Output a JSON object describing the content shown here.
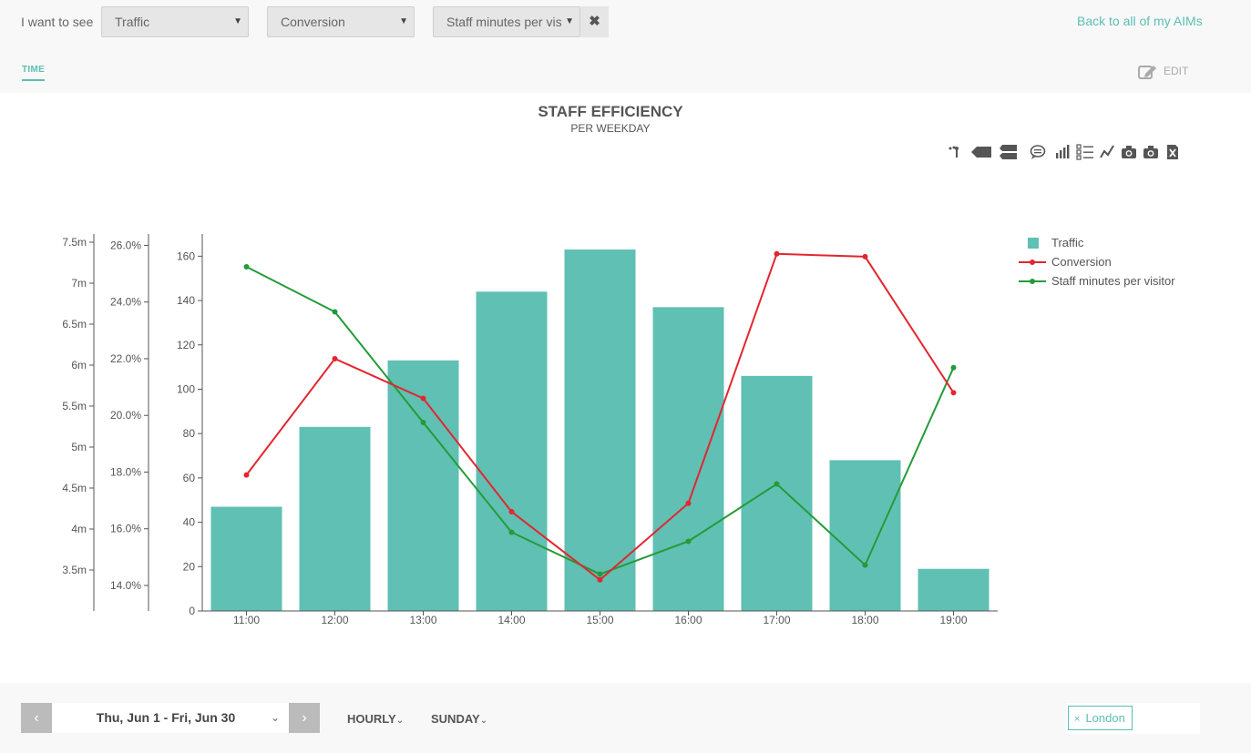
{
  "header": {
    "i_want_to_see": "I want to see",
    "selects": [
      "Traffic",
      "Conversion",
      "Staff minutes per vis"
    ],
    "back_link": "Back to all of my AIMs",
    "tab_time": "TIME",
    "edit_label": "EDIT"
  },
  "chart_meta": {
    "title": "STAFF EFFICIENCY",
    "subtitle": "PER WEEKDAY",
    "toolbar_icons": [
      "scatter-icon",
      "tag-icon",
      "double-tag-icon",
      "comment-icon",
      "bar-chart-icon",
      "list-icon",
      "line-chart-icon",
      "camera-icon",
      "camera-icon",
      "excel-icon"
    ]
  },
  "chart_data": {
    "type": "bar",
    "categories": [
      "11:00",
      "12:00",
      "13:00",
      "14:00",
      "15:00",
      "16:00",
      "17:00",
      "18:00",
      "19:00"
    ],
    "series": [
      {
        "name": "Traffic",
        "type": "bar",
        "axis": "left",
        "color": "#5fc0b3",
        "values": [
          47,
          83,
          113,
          144,
          163,
          137,
          106,
          68,
          19
        ]
      },
      {
        "name": "Conversion",
        "type": "line",
        "axis": "pct",
        "color": "#e3262f",
        "values": [
          17.9,
          22.0,
          20.6,
          16.6,
          14.2,
          16.9,
          25.7,
          25.6,
          20.8
        ]
      },
      {
        "name": "Staff minutes per visitor",
        "type": "line",
        "axis": "minutes",
        "color": "#249b38",
        "values": [
          7.2,
          6.65,
          5.3,
          3.96,
          3.45,
          3.85,
          4.55,
          3.56,
          5.97
        ]
      }
    ],
    "axes": {
      "left": {
        "ylim": [
          0,
          170
        ],
        "ticks": [
          "0",
          "20",
          "40",
          "60",
          "80",
          "100",
          "120",
          "140",
          "160"
        ]
      },
      "pct": {
        "ylim": [
          13.1,
          26.4
        ],
        "ticks": [
          "14.0%",
          "16.0%",
          "18.0%",
          "20.0%",
          "22.0%",
          "24.0%",
          "26.0%"
        ]
      },
      "minutes": {
        "ylim": [
          3.0,
          7.6
        ],
        "ticks": [
          "3.5m",
          "4m",
          "4.5m",
          "5m",
          "5.5m",
          "6m",
          "6.5m",
          "7m",
          "7.5m"
        ]
      }
    },
    "legend_position": "top-right"
  },
  "footer": {
    "prev": "‹",
    "next": "›",
    "date_range": "Thu, Jun 1 - Fri, Jun 30",
    "granularity": "HOURLY",
    "weekday": "SUNDAY",
    "location_tag": "London",
    "location_remove": "×"
  }
}
